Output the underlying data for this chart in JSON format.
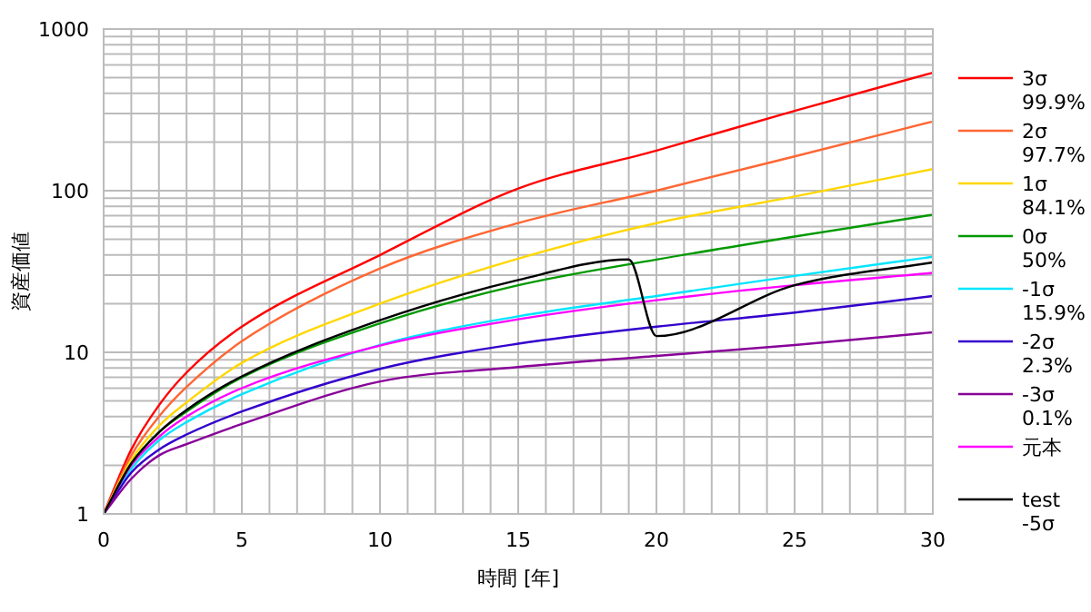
{
  "chart_data": {
    "type": "line",
    "xlabel": "時間 [年]",
    "ylabel": "資産価値",
    "log": "y",
    "grid": true,
    "legend": "right",
    "marker": "none",
    "line_style": "solid",
    "xlim": [
      0,
      30
    ],
    "ylim": [
      1,
      1000
    ],
    "xticks": [
      0,
      5,
      10,
      15,
      20,
      25,
      30
    ],
    "yticks": [
      1,
      10,
      100,
      1000
    ],
    "x": [
      0,
      1,
      2,
      3,
      5,
      10,
      15,
      20,
      25,
      30
    ],
    "series": [
      {
        "name": "3σ 99.9%",
        "color": "#ff0000",
        "values": [
          1,
          2.5,
          4.7,
          7.5,
          14.4,
          40,
          103,
          177,
          312,
          537
        ]
      },
      {
        "name": "2σ 97.7%",
        "color": "#ff6633",
        "values": [
          1,
          2.3,
          4.0,
          6.1,
          11.7,
          33,
          63,
          100,
          163,
          268
        ]
      },
      {
        "name": "1σ 84.1%",
        "color": "#ffd700",
        "values": [
          1,
          2.15,
          3.5,
          4.9,
          8.6,
          20,
          38,
          63,
          92,
          136
        ]
      },
      {
        "name": "0σ 50%",
        "color": "#009900",
        "values": [
          1,
          2.05,
          3.2,
          4.3,
          7.0,
          15.1,
          26,
          37.5,
          52,
          71
        ]
      },
      {
        "name": "-1σ 15.9%",
        "color": "#00e5ff",
        "values": [
          1,
          1.9,
          2.85,
          3.7,
          5.5,
          11.1,
          16.7,
          22.3,
          29.7,
          39
        ]
      },
      {
        "name": "-2σ 2.3%",
        "color": "#3300cc",
        "values": [
          1,
          1.8,
          2.5,
          3.1,
          4.3,
          7.9,
          11.3,
          14.4,
          17.6,
          22.3
        ]
      },
      {
        "name": "-3σ 0.1%",
        "color": "#880099",
        "values": [
          1,
          1.65,
          2.3,
          2.7,
          3.6,
          6.6,
          8.1,
          9.5,
          11.1,
          13.3
        ]
      },
      {
        "name": "元本",
        "color": "#ff00ff",
        "values": [
          1,
          2,
          3,
          4,
          6,
          11,
          16,
          21,
          26,
          31
        ]
      },
      {
        "name": "test -5σ",
        "color": "#000000",
        "x": [
          0,
          1,
          2,
          3,
          5,
          10,
          15,
          19,
          20,
          25,
          30
        ],
        "values": [
          1,
          2.05,
          3.2,
          4.4,
          7.1,
          15.8,
          28,
          37.5,
          12.6,
          26,
          36
        ]
      }
    ]
  }
}
